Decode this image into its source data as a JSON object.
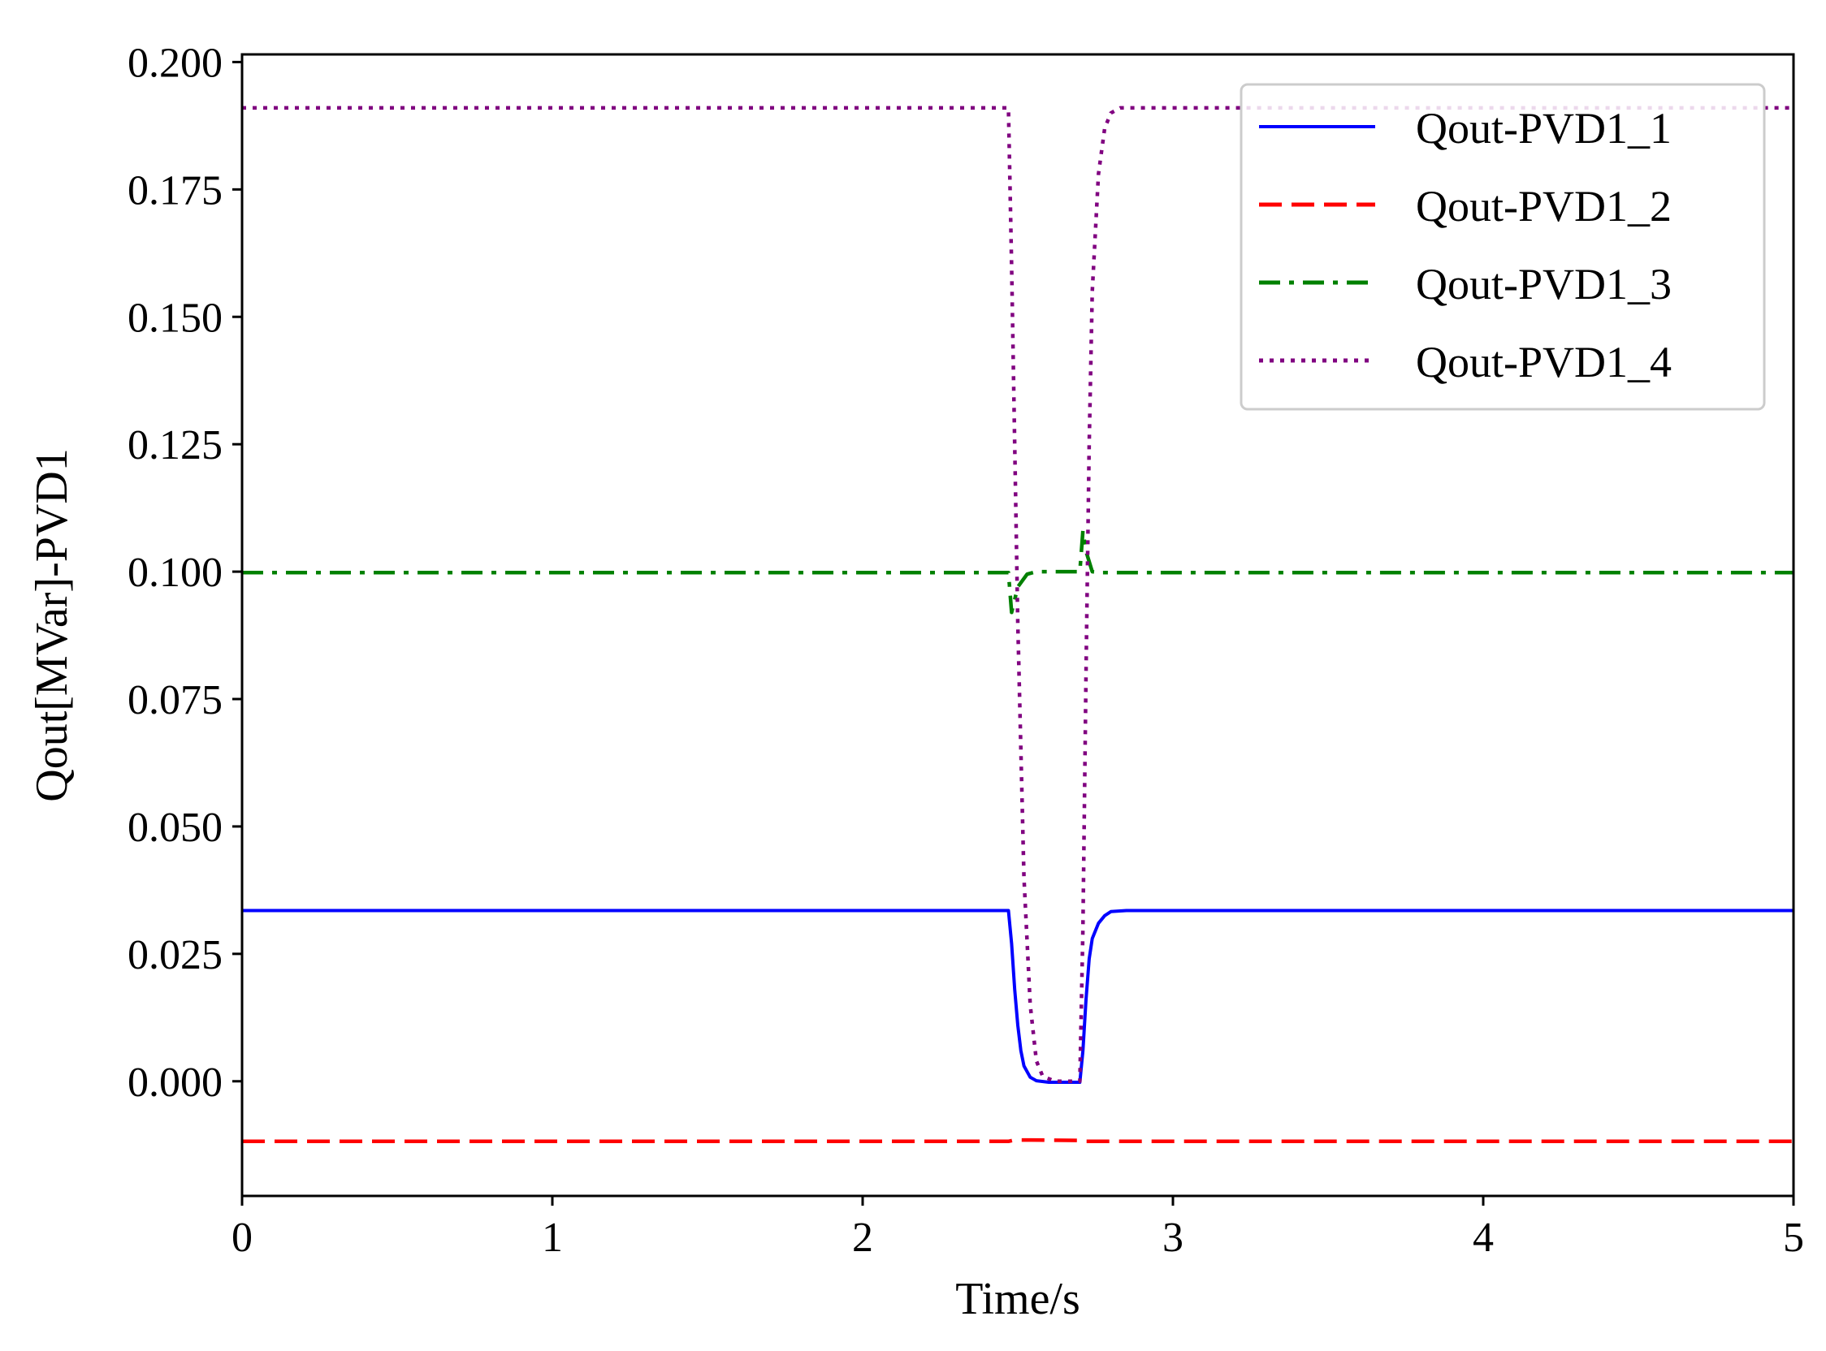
{
  "chart_data": {
    "type": "line",
    "title": "",
    "xlabel": "Time/s",
    "ylabel": "Qout[MVar]-PVD1",
    "xlim": [
      0,
      5
    ],
    "ylim": [
      -0.0225,
      0.2015
    ],
    "x_ticks": [
      0,
      1,
      2,
      3,
      4,
      5
    ],
    "x_tick_labels": [
      "0",
      "1",
      "2",
      "3",
      "4",
      "5"
    ],
    "y_ticks": [
      0.0,
      0.025,
      0.05,
      0.075,
      0.1,
      0.125,
      0.15,
      0.175,
      0.2
    ],
    "y_tick_labels": [
      "0.000",
      "0.025",
      "0.050",
      "0.075",
      "0.100",
      "0.125",
      "0.150",
      "0.175",
      "0.200"
    ],
    "grid": false,
    "legend_position": "top-right",
    "series": [
      {
        "name": "Qout-PVD1_1",
        "color": "#0000ff",
        "style": "solid",
        "x": [
          0,
          2.47,
          2.48,
          2.49,
          2.5,
          2.51,
          2.52,
          2.54,
          2.56,
          2.6,
          2.7,
          2.71,
          2.72,
          2.73,
          2.74,
          2.76,
          2.78,
          2.8,
          2.85,
          5
        ],
        "y": [
          0.0335,
          0.0335,
          0.027,
          0.018,
          0.011,
          0.006,
          0.003,
          0.0008,
          0.0001,
          -0.0002,
          -0.0002,
          0.006,
          0.016,
          0.024,
          0.028,
          0.031,
          0.0325,
          0.0333,
          0.0335,
          0.0335
        ]
      },
      {
        "name": "Qout-PVD1_2",
        "color": "#ff0000",
        "style": "dashed",
        "x": [
          0,
          2.47,
          2.49,
          2.7,
          2.72,
          5
        ],
        "y": [
          -0.0118,
          -0.0118,
          -0.0115,
          -0.0116,
          -0.0118,
          -0.0118
        ]
      },
      {
        "name": "Qout-PVD1_3",
        "color": "#008000",
        "style": "dashdot",
        "x": [
          0,
          2.47,
          2.48,
          2.5,
          2.53,
          2.56,
          2.6,
          2.7,
          2.71,
          2.72,
          2.74,
          2.77,
          2.8,
          5
        ],
        "y": [
          0.0998,
          0.0998,
          0.092,
          0.097,
          0.0995,
          0.1,
          0.1,
          0.1,
          0.108,
          0.104,
          0.1,
          0.0998,
          0.0998,
          0.0998
        ]
      },
      {
        "name": "Qout-PVD1_4",
        "color": "#800080",
        "style": "dotted",
        "x": [
          0,
          2.47,
          2.48,
          2.5,
          2.52,
          2.54,
          2.56,
          2.58,
          2.62,
          2.7,
          2.71,
          2.72,
          2.73,
          2.74,
          2.76,
          2.78,
          2.8,
          2.83,
          5
        ],
        "y": [
          0.191,
          0.191,
          0.16,
          0.09,
          0.04,
          0.015,
          0.004,
          0.001,
          0.0,
          0.0,
          0.03,
          0.08,
          0.125,
          0.155,
          0.178,
          0.187,
          0.19,
          0.191,
          0.191
        ]
      }
    ]
  }
}
